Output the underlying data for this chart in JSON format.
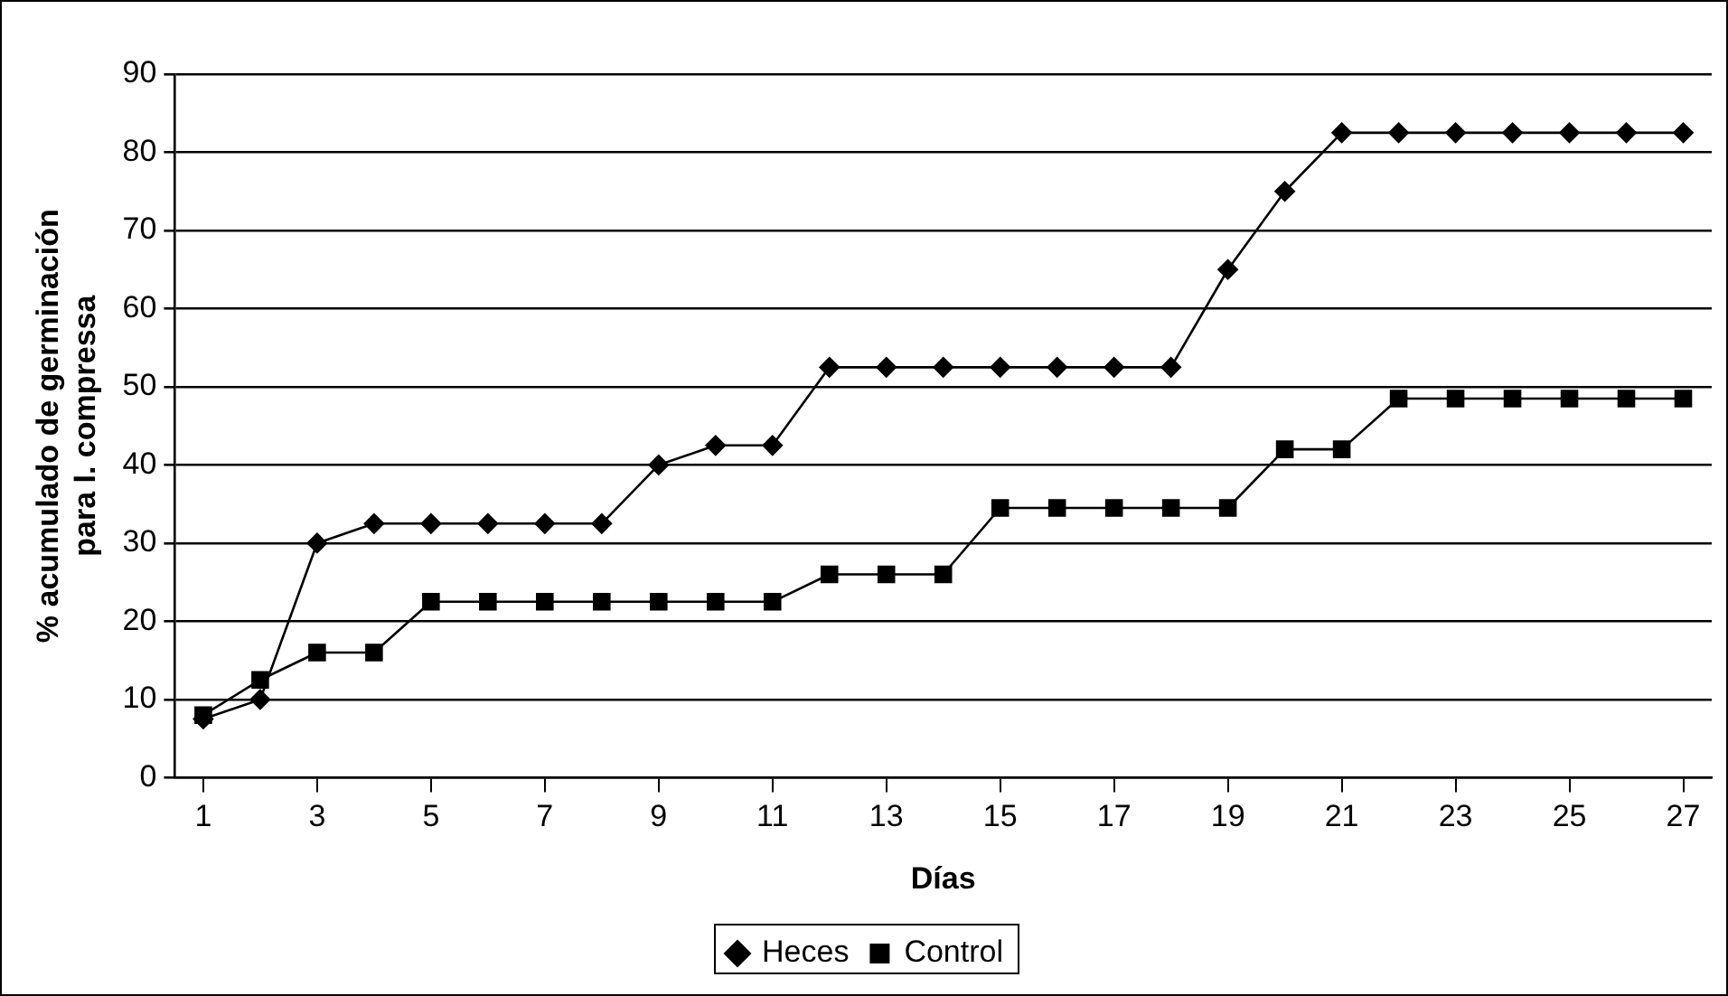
{
  "chart_data": {
    "type": "line",
    "xlabel": "Días",
    "ylabel": "% acumulado de germinación\npara I. compressa",
    "x": [
      1,
      2,
      3,
      4,
      5,
      6,
      7,
      8,
      9,
      10,
      11,
      12,
      13,
      14,
      15,
      16,
      17,
      18,
      19,
      20,
      21,
      22,
      23,
      24,
      25,
      26,
      27
    ],
    "xlim": [
      0.5,
      27.5
    ],
    "xticks": [
      1,
      3,
      5,
      7,
      9,
      11,
      13,
      15,
      17,
      19,
      21,
      23,
      25,
      27
    ],
    "series": [
      {
        "name": "Heces",
        "color": "#000000",
        "marker": "diamond",
        "values": [
          7.5,
          10,
          30,
          32.5,
          32.5,
          32.5,
          32.5,
          32.5,
          40,
          42.5,
          42.5,
          52.5,
          52.5,
          52.5,
          52.5,
          52.5,
          52.5,
          52.5,
          65,
          75,
          82.5,
          82.5,
          82.5,
          82.5,
          82.5,
          82.5,
          82.5
        ]
      },
      {
        "name": "Control",
        "color": "#000000",
        "marker": "square",
        "values": [
          8,
          12.5,
          16,
          16,
          22.5,
          22.5,
          22.5,
          22.5,
          22.5,
          22.5,
          22.5,
          26,
          26,
          26,
          34.5,
          34.5,
          34.5,
          34.5,
          34.5,
          42,
          42,
          48.5,
          48.5,
          48.5,
          48.5,
          48.5,
          48.5
        ]
      }
    ],
    "ylim": [
      0,
      90
    ],
    "yticks": [
      0,
      10,
      20,
      30,
      40,
      50,
      60,
      70,
      80,
      90
    ],
    "grid": "y",
    "legend": "bottom",
    "line_style": "solid"
  }
}
